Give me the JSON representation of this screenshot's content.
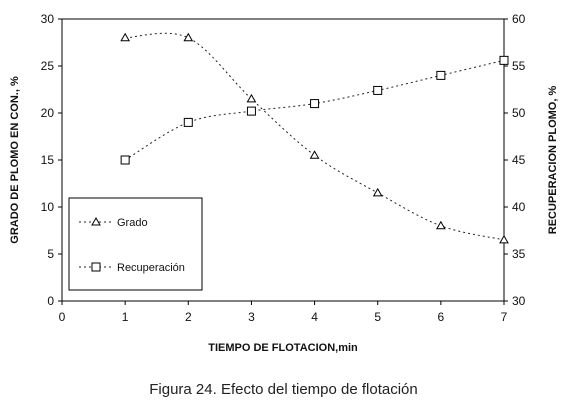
{
  "caption": "Figura 24. Efecto del tiempo de flotación",
  "chart_data": {
    "type": "line",
    "title": "",
    "xlabel": "TIEMPO DE FLOTACION,min",
    "ylabel_left": "GRADO DE PLOMO EN CON., %",
    "ylabel_right": "RECUPERACION PLOMO, %",
    "xlim": [
      0,
      7
    ],
    "ylim_left": [
      0,
      30
    ],
    "ylim_right": [
      30,
      60
    ],
    "x_ticks": [
      0,
      1,
      2,
      3,
      4,
      5,
      6,
      7
    ],
    "y_left_ticks": [
      0,
      5,
      10,
      15,
      20,
      25,
      30
    ],
    "y_right_ticks": [
      30,
      35,
      40,
      45,
      50,
      55,
      60
    ],
    "grid": false,
    "legend_position": "lower-left",
    "series": [
      {
        "name": "Grado",
        "axis": "left",
        "marker": "triangle",
        "x": [
          1,
          2,
          3,
          4,
          5,
          6,
          7
        ],
        "values": [
          28,
          28,
          21.5,
          15.5,
          11.5,
          8,
          6.5
        ]
      },
      {
        "name": "Recuperación",
        "axis": "right",
        "marker": "square",
        "x": [
          1,
          2,
          3,
          4,
          5,
          6,
          7
        ],
        "values": [
          45,
          49,
          50.2,
          51,
          52.4,
          54,
          55.6
        ]
      }
    ]
  }
}
